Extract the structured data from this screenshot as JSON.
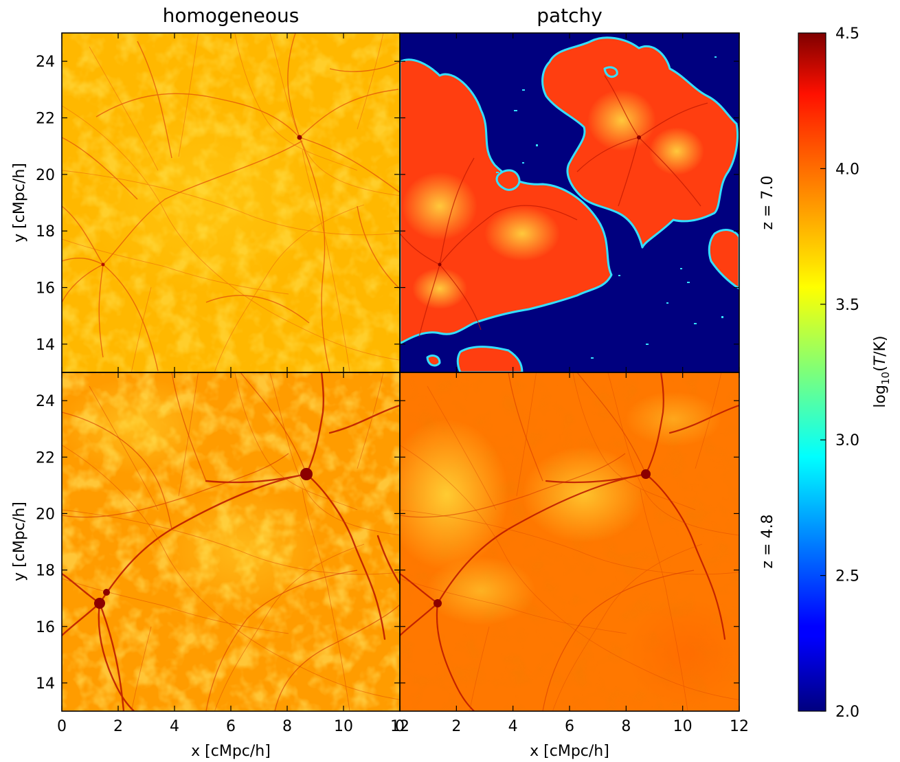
{
  "chart_data": {
    "type": "heatmap",
    "column_titles": [
      "homogeneous",
      "patchy"
    ],
    "row_labels": [
      "z = 7.0",
      "z = 4.8"
    ],
    "xlabel": "x [cMpc/h]",
    "ylabel": "y [cMpc/h]",
    "xlim": [
      0,
      12
    ],
    "ylim": [
      13,
      25
    ],
    "xticks": [
      "0",
      "2",
      "4",
      "6",
      "8",
      "10",
      "12"
    ],
    "yticks": [
      "14",
      "16",
      "18",
      "20",
      "22",
      "24"
    ],
    "colorbar": {
      "label": "log10(T/K)",
      "label_base": "log",
      "label_sub": "10",
      "label_rest_open": "(",
      "label_italic": "T",
      "label_rest_close": "/K)",
      "range": [
        2.0,
        4.5
      ],
      "ticks": [
        "2.0",
        "2.5",
        "3.0",
        "3.5",
        "4.0",
        "4.5"
      ],
      "colormap": "jet"
    },
    "panels": [
      {
        "column": "homogeneous",
        "row": "z = 7.0",
        "typical_log10T": 3.85,
        "filament_log10T": 4.2
      },
      {
        "column": "patchy",
        "row": "z = 7.0",
        "ionized_log10T": 4.1,
        "neutral_log10T": 2.0
      },
      {
        "column": "homogeneous",
        "row": "z = 4.8",
        "typical_log10T": 4.05,
        "filament_log10T": 4.4
      },
      {
        "column": "patchy",
        "row": "z = 4.8",
        "typical_log10T": 3.95,
        "filament_log10T": 4.4
      }
    ]
  },
  "colors": {
    "neutral": "#00007f",
    "cool_ionized": "#ffd500",
    "warm_ionized": "#ff8c00",
    "hot": "#e02000",
    "filament": "#8b0000"
  }
}
